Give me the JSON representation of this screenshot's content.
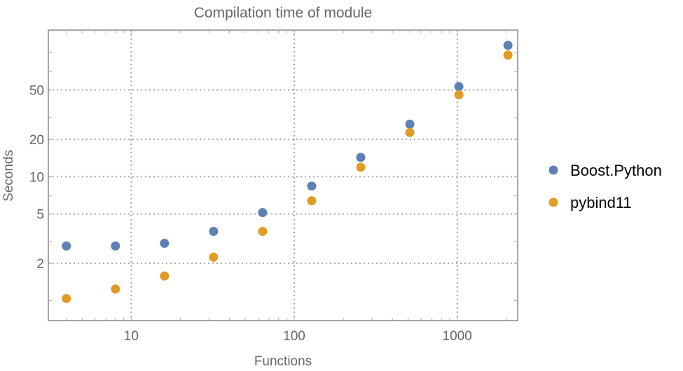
{
  "chart_data": {
    "type": "scatter",
    "title": "Compilation time of module",
    "xlabel": "Functions",
    "ylabel": "Seconds",
    "xscale": "log",
    "yscale": "log",
    "xlim": [
      3.1,
      2350
    ],
    "ylim": [
      0.69,
      152
    ],
    "xticks": [
      10,
      100,
      1000
    ],
    "xtick_labels": [
      "10",
      "100",
      "1000"
    ],
    "yticks": [
      2,
      5,
      10,
      20,
      50
    ],
    "ytick_labels": [
      "2",
      "5",
      "10",
      "20",
      "50"
    ],
    "grid": "dotted at major ticks",
    "legend_position": "right",
    "x": [
      4,
      8,
      16,
      32,
      64,
      128,
      256,
      512,
      1024,
      2048
    ],
    "series": [
      {
        "name": "Boost.Python",
        "color": "#5E81B5",
        "values": [
          2.76,
          2.76,
          2.9,
          3.62,
          5.13,
          8.39,
          14.3,
          26.5,
          53.3,
          114.5
        ]
      },
      {
        "name": "pybind11",
        "color": "#E19C24",
        "values": [
          1.04,
          1.24,
          1.58,
          2.24,
          3.62,
          6.39,
          11.9,
          22.7,
          45.7,
          95.5
        ]
      }
    ]
  }
}
